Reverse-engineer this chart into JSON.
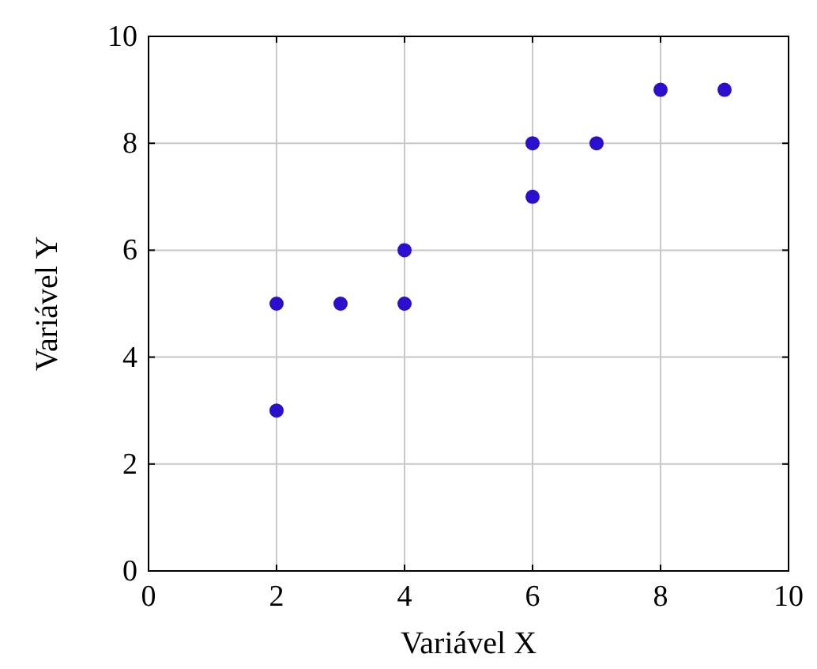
{
  "chart_data": {
    "type": "scatter",
    "xlabel": "Variável X",
    "ylabel": "Variável Y",
    "x": [
      2,
      2,
      3,
      4,
      4,
      6,
      6,
      7,
      8,
      9
    ],
    "series": [
      {
        "color": "#2a0fcf",
        "values": [
          5,
          3,
          5,
          6,
          5,
          8,
          7,
          8,
          9,
          9
        ]
      }
    ],
    "xlim": [
      0,
      10
    ],
    "ylim": [
      0,
      10
    ],
    "xticks": [
      0,
      2,
      4,
      6,
      8,
      10
    ],
    "yticks": [
      0,
      2,
      4,
      6,
      8,
      10
    ],
    "grid": true,
    "marker": "circle"
  }
}
